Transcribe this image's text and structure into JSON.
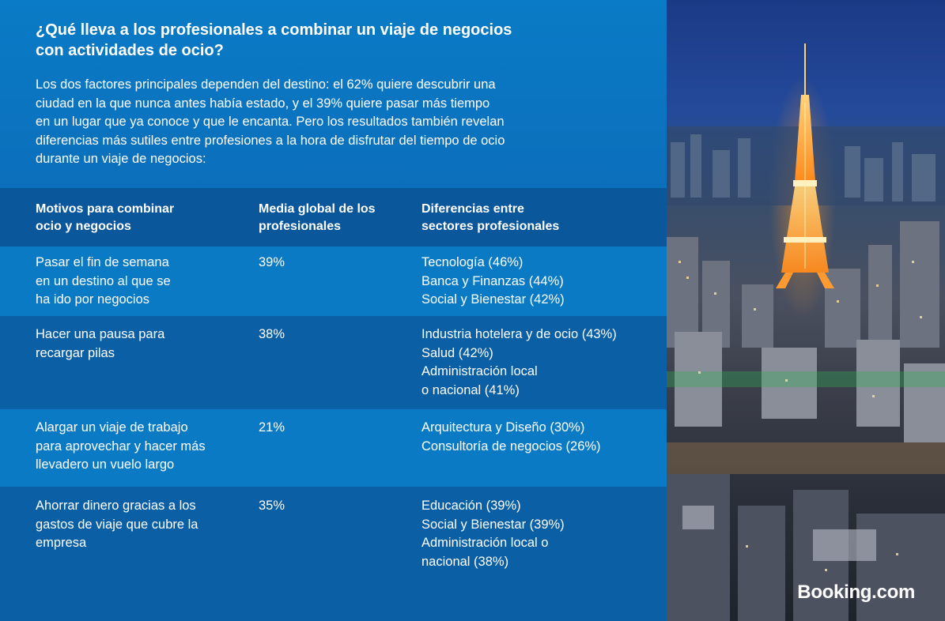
{
  "title": "¿Qué lleva a los profesionales a combinar un viaje de negocios\ncon actividades de ocio?",
  "intro": "Los dos factores principales dependen del destino: el 62% quiere descubrir una\nciudad en la que nunca antes había estado, y el 39% quiere pasar más tiempo\nen un lugar que ya conoce y que le encanta. Pero los resultados también revelan\ndiferencias más sutiles entre profesiones a la hora de disfrutar del tiempo de ocio\ndurante un viaje de negocios:",
  "table": {
    "headers": [
      "Motivos para combinar\nocio y negocios",
      "Media global de los\nprofesionales",
      "Diferencias entre\nsectores profesionales"
    ],
    "rows": [
      {
        "motive": "Pasar el fin de semana\nen un destino al que se\nha ido por negocios",
        "average": "39%",
        "differences": "Tecnología (46%)\nBanca y Finanzas (44%)\nSocial y Bienestar (42%)"
      },
      {
        "motive": "Hacer una pausa para\nrecargar pilas",
        "average": "38%",
        "differences": "Industria hotelera y de ocio (43%)\nSalud (42%)\nAdministración local\no nacional (41%)"
      },
      {
        "motive": "Alargar un viaje de trabajo\npara aprovechar y hacer más\nllevadero un vuelo largo",
        "average": "21%",
        "differences": "Arquitectura y Diseño (30%)\nConsultoría de negocios (26%)"
      },
      {
        "motive": "Ahorrar dinero gracias a los\ngastos de viaje que cubre la\nempresa",
        "average": "35%",
        "differences": "Educación (39%)\nSocial y Bienestar (39%)\nAdministración local o\nnacional (38%)"
      }
    ]
  },
  "logo": "Booking.com",
  "colors": {
    "panel": "#0c6bb8",
    "header_row": "#0b579c",
    "row_light": "#0b7ac5",
    "row_dark": "#0b5fa5",
    "text": "#ffffff"
  }
}
